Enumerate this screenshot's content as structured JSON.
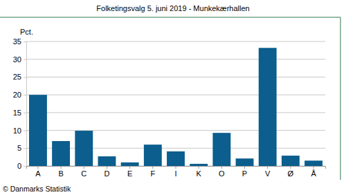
{
  "chart_data": {
    "type": "bar",
    "title": "Folketingsvalg 5. juni 2019 - Munkekærhallen",
    "y_label": "Pct.",
    "source": "© Danmarks Statistik",
    "categories": [
      "A",
      "B",
      "C",
      "D",
      "E",
      "F",
      "I",
      "K",
      "O",
      "P",
      "V",
      "Ø",
      "Å"
    ],
    "values": [
      20.0,
      7.0,
      9.9,
      2.7,
      1.0,
      6.0,
      4.1,
      0.6,
      9.3,
      2.1,
      33.2,
      2.9,
      1.5
    ],
    "color": "#0b5e8d",
    "ylim": [
      0,
      35
    ],
    "yticks": [
      0,
      5,
      10,
      15,
      20,
      25,
      30,
      35
    ],
    "grid": true
  }
}
